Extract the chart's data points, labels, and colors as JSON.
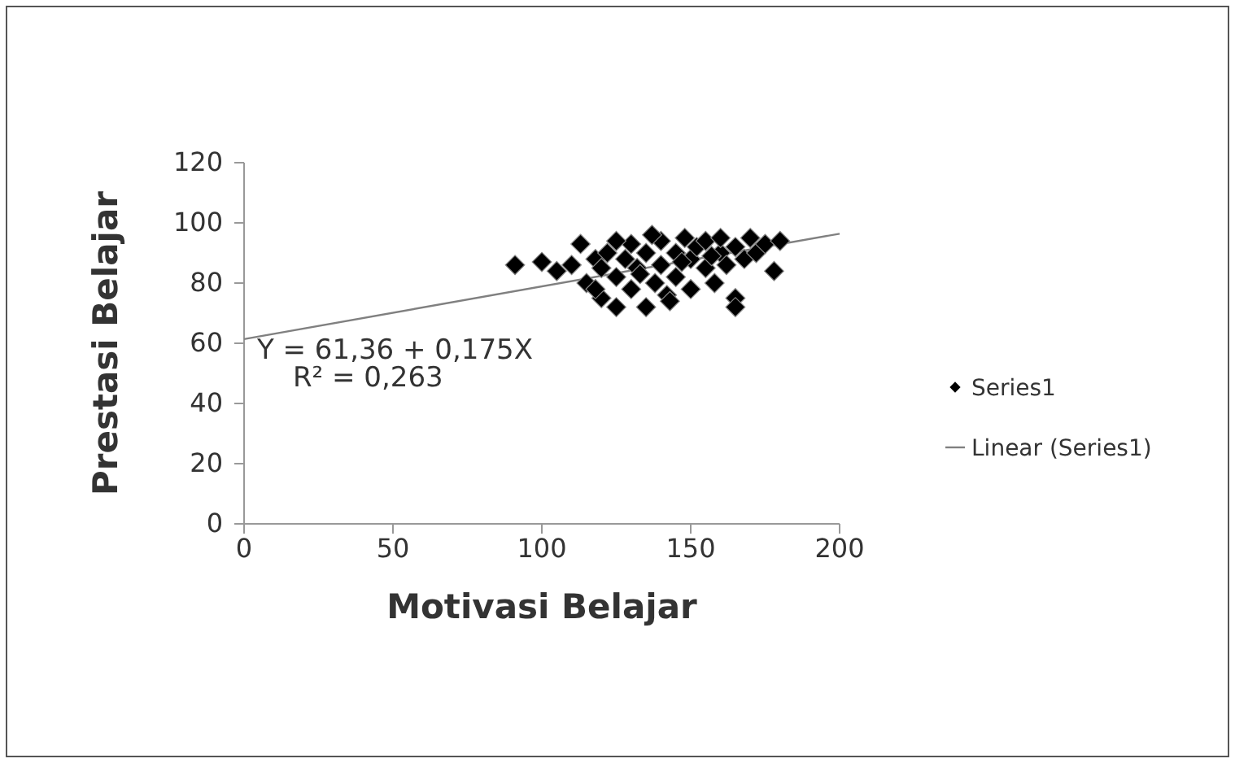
{
  "chart_data": {
    "type": "scatter",
    "xlabel": "Motivasi Belajar",
    "ylabel": "Prestasi Belajar",
    "xlim": [
      0,
      200
    ],
    "ylim": [
      0,
      120
    ],
    "xticks": [
      0,
      50,
      100,
      150,
      200
    ],
    "yticks": [
      0,
      20,
      40,
      60,
      80,
      100,
      120
    ],
    "legend": "right",
    "annotations": [
      {
        "text": "Y = 61,36 + 0,175X",
        "x": 0,
        "y": 61.36
      },
      "R² = 0,263"
    ],
    "series": [
      {
        "name": "Series1",
        "marker": "diamond",
        "color": "#000000",
        "x": [
          91,
          100,
          105,
          110,
          113,
          115,
          118,
          120,
          120,
          122,
          125,
          125,
          128,
          130,
          130,
          132,
          135,
          135,
          138,
          140,
          140,
          142,
          145,
          145,
          148,
          150,
          150,
          152,
          155,
          155,
          158,
          160,
          160,
          162,
          165,
          165,
          165,
          168,
          170,
          172,
          175,
          178,
          180,
          125,
          137,
          143,
          118,
          133,
          147,
          157
        ],
        "values": [
          86,
          87,
          84,
          86,
          93,
          80,
          88,
          75,
          85,
          90,
          72,
          82,
          88,
          93,
          78,
          85,
          72,
          90,
          80,
          94,
          86,
          76,
          90,
          82,
          95,
          88,
          78,
          92,
          85,
          94,
          80,
          90,
          95,
          86,
          75,
          72,
          92,
          88,
          95,
          90,
          93,
          84,
          94,
          94,
          96,
          74,
          78,
          83,
          87,
          89
        ]
      },
      {
        "name": "Linear (Series1)",
        "type": "line",
        "color": "#808080",
        "x": [
          0,
          200
        ],
        "values": [
          61.4,
          96.4
        ]
      }
    ]
  }
}
